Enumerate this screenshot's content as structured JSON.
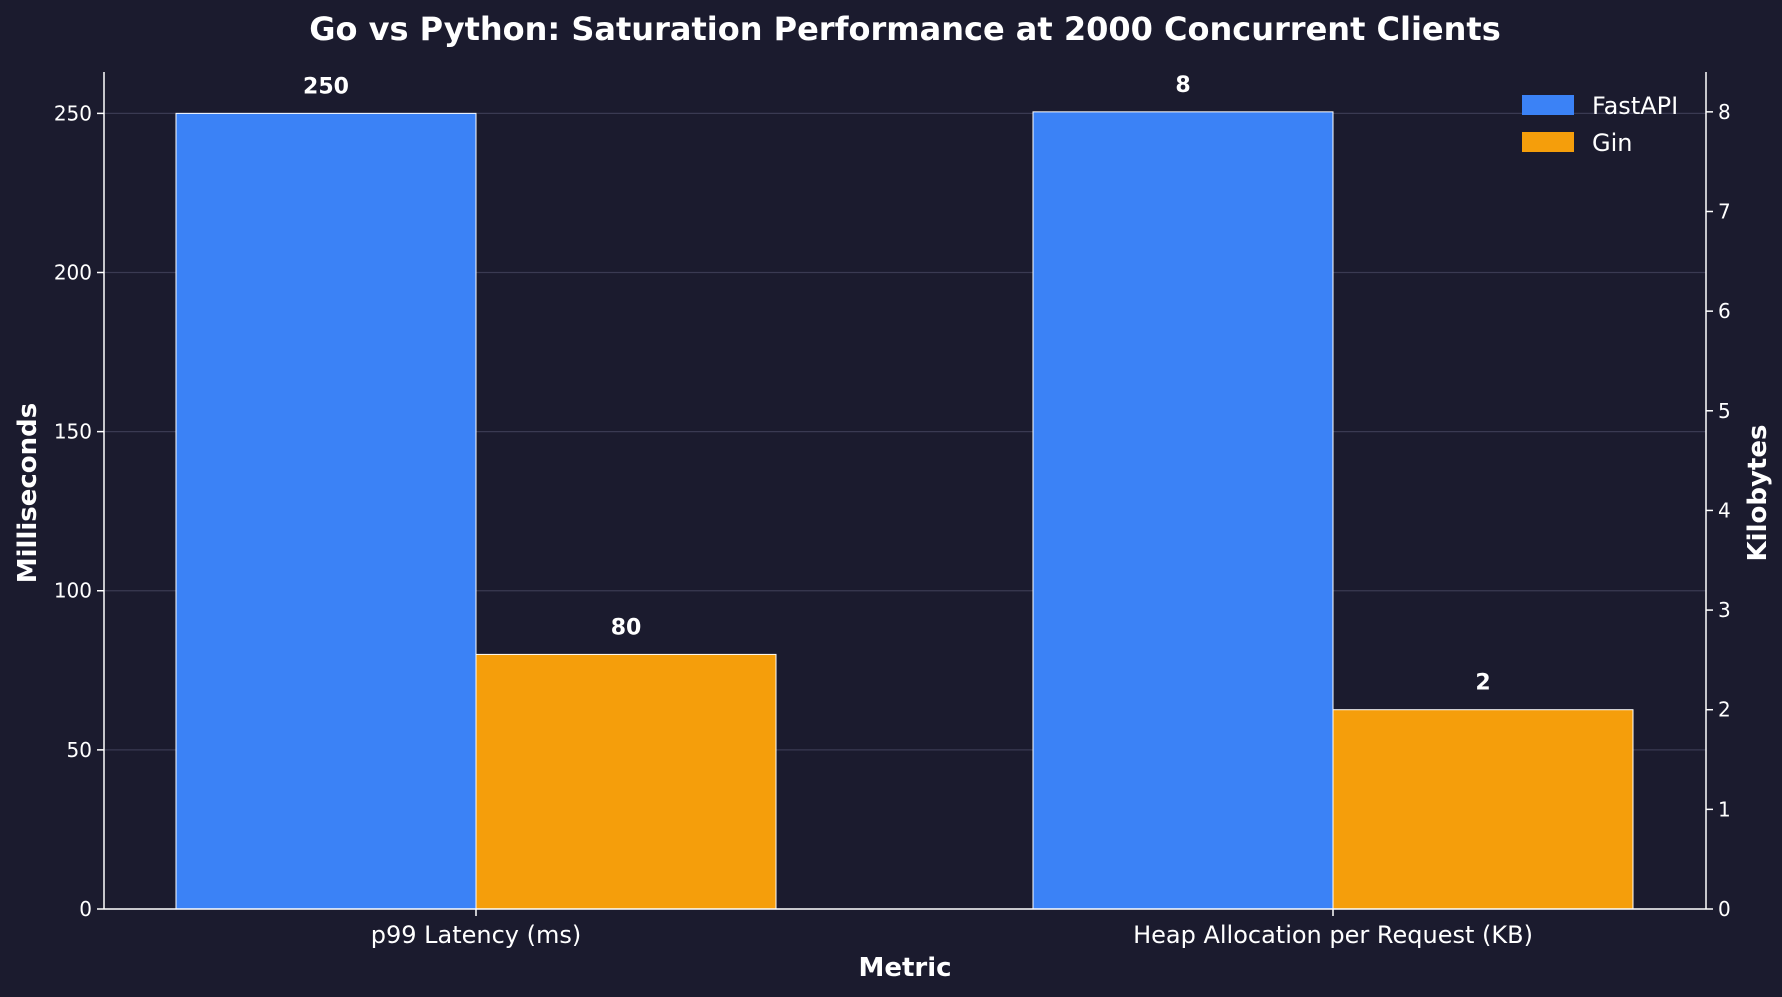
{
  "colors": {
    "background": "#1b1b2e",
    "fastapi": "#3b82f6",
    "gin": "#f59e0b",
    "text": "#ffffff",
    "grid": "#3a3a52"
  },
  "chart_data": {
    "type": "bar",
    "title": "Go vs Python: Saturation Performance at 2000 Concurrent Clients",
    "xlabel": "Metric",
    "ylabel_left": "Milliseconds",
    "ylabel_right": "Kilobytes",
    "categories": [
      "p99 Latency (ms)",
      "Heap Allocation per Request (KB)"
    ],
    "series": [
      {
        "name": "FastAPI",
        "values": [
          250,
          8
        ],
        "labels": [
          "250",
          "8"
        ]
      },
      {
        "name": "Gin",
        "values": [
          80,
          2
        ],
        "labels": [
          "80",
          "2"
        ]
      }
    ],
    "axes": [
      "left",
      "right"
    ],
    "ylim_left": [
      0,
      263
    ],
    "ylim_right": [
      0,
      8.4
    ],
    "yticks_left": [
      "0",
      "50",
      "100",
      "150",
      "200",
      "250"
    ],
    "yticks_right": [
      "0",
      "1",
      "2",
      "3",
      "4",
      "5",
      "6",
      "7",
      "8"
    ],
    "grid": true,
    "legend": "top-right"
  }
}
